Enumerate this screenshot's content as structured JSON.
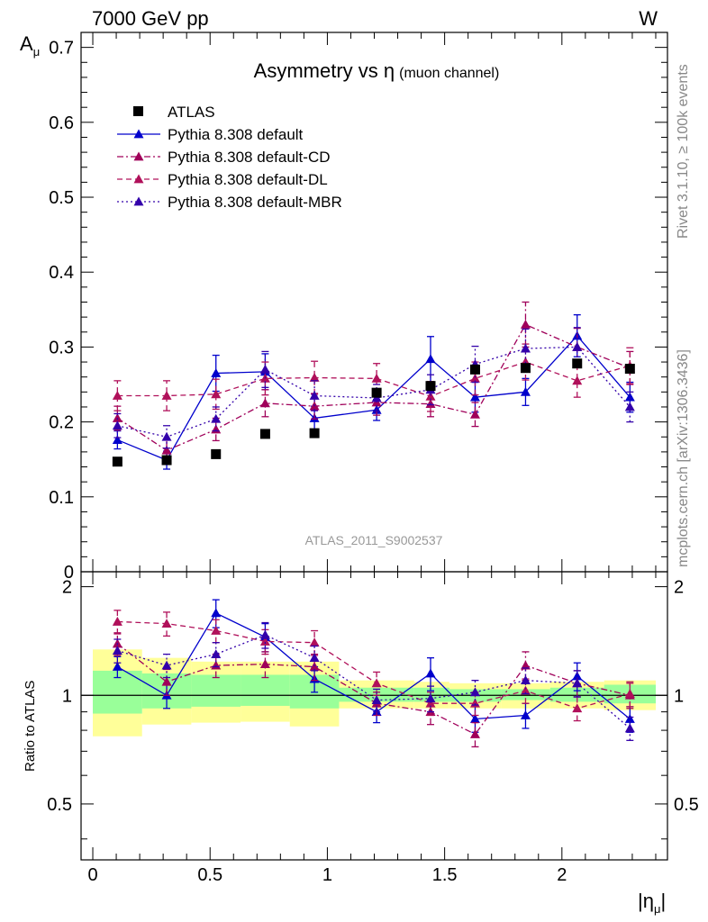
{
  "header": {
    "left": "7000 GeV pp",
    "right": "W"
  },
  "side": {
    "rivet": "Rivet 3.1.10, ≥ 100k events",
    "mcplots": "mcplots.cern.ch [arXiv:1306.3436]"
  },
  "colors": {
    "atlas": "#000000",
    "default": "#0000cc",
    "cd": "#a0005a",
    "dl": "#b0105a",
    "mbr": "#3300aa",
    "band_green": "#99ff99",
    "band_yellow": "#ffff99"
  },
  "chart_data": {
    "type": "scatter",
    "title": "Asymmetry vs η",
    "title_sub": "(muon channel)",
    "watermark": "ATLAS_2011_S9002537",
    "xlabel": "|η",
    "xlabel_sub": "μ",
    "ylabel": "A",
    "ylabel_sub": "μ",
    "ratio_ylabel": "Ratio to ATLAS",
    "xlim": [
      -0.05,
      2.45
    ],
    "ylim": [
      0,
      0.72
    ],
    "ratio_ylim": [
      0.35,
      2.2
    ],
    "x_ticks": [
      "0",
      "0.5",
      "1",
      "1.5",
      "2"
    ],
    "y_ticks": [
      "0",
      "0.1",
      "0.2",
      "0.3",
      "0.4",
      "0.5",
      "0.6",
      "0.7"
    ],
    "ratio_y_ticks": [
      "0.5",
      "1",
      "2"
    ],
    "x": [
      0.105,
      0.315,
      0.525,
      0.735,
      0.945,
      1.21,
      1.44,
      1.63,
      1.845,
      2.065,
      2.29
    ],
    "bin_edges": [
      0,
      0.21,
      0.42,
      0.63,
      0.84,
      1.05,
      1.37,
      1.52,
      1.74,
      1.95,
      2.18,
      2.4
    ],
    "legend": [
      "ATLAS",
      "Pythia 8.308 default",
      "Pythia 8.308 default-CD",
      "Pythia 8.308 default-DL",
      "Pythia 8.308 default-MBR"
    ],
    "data": {
      "name": "ATLAS",
      "values": [
        0.147,
        0.149,
        0.157,
        0.184,
        0.185,
        0.239,
        0.248,
        0.27,
        0.272,
        0.278,
        0.271
      ]
    },
    "ratio_bands": {
      "green": [
        [
          0.89,
          1.17
        ],
        [
          0.92,
          1.15
        ],
        [
          0.93,
          1.14
        ],
        [
          0.935,
          1.14
        ],
        [
          0.92,
          1.14
        ],
        [
          0.96,
          1.05
        ],
        [
          0.96,
          1.05
        ],
        [
          0.96,
          1.04
        ],
        [
          0.97,
          1.04
        ],
        [
          0.96,
          1.05
        ],
        [
          0.95,
          1.07
        ]
      ],
      "yellow": [
        [
          0.77,
          1.34
        ],
        [
          0.83,
          1.27
        ],
        [
          0.84,
          1.24
        ],
        [
          0.845,
          1.24
        ],
        [
          0.82,
          1.24
        ],
        [
          0.92,
          1.1
        ],
        [
          0.92,
          1.09
        ],
        [
          0.92,
          1.08
        ],
        [
          0.92,
          1.08
        ],
        [
          0.92,
          1.09
        ],
        [
          0.91,
          1.1
        ]
      ]
    },
    "series": [
      {
        "name": "Pythia 8.308 default",
        "values": [
          0.176,
          0.149,
          0.265,
          0.267,
          0.205,
          0.216,
          0.284,
          0.233,
          0.24,
          0.315,
          0.233
        ],
        "errors": [
          0.012,
          0.012,
          0.024,
          0.024,
          0.016,
          0.014,
          0.03,
          0.02,
          0.018,
          0.028,
          0.02
        ],
        "ratio": [
          1.2,
          1.0,
          1.69,
          1.45,
          1.11,
          0.9,
          1.15,
          0.86,
          0.88,
          1.13,
          0.86
        ],
        "ratio_err": [
          0.08,
          0.08,
          0.15,
          0.13,
          0.09,
          0.06,
          0.12,
          0.07,
          0.07,
          0.1,
          0.07
        ],
        "line": "solid",
        "color": "#0000cc"
      },
      {
        "name": "Pythia 8.308 default-CD",
        "values": [
          0.205,
          0.162,
          0.19,
          0.225,
          0.221,
          0.226,
          0.224,
          0.21,
          0.33,
          0.3,
          0.272
        ],
        "errors": [
          0.016,
          0.014,
          0.015,
          0.018,
          0.017,
          0.017,
          0.017,
          0.016,
          0.03,
          0.025,
          0.022
        ],
        "ratio": [
          1.39,
          1.09,
          1.21,
          1.22,
          1.2,
          0.95,
          0.9,
          0.78,
          1.21,
          1.08,
          1.0
        ],
        "ratio_err": [
          0.1,
          0.09,
          0.09,
          0.1,
          0.1,
          0.07,
          0.07,
          0.06,
          0.11,
          0.09,
          0.08
        ],
        "line": "dashdot",
        "color": "#a0005a"
      },
      {
        "name": "Pythia 8.308 default-DL",
        "values": [
          0.235,
          0.235,
          0.237,
          0.258,
          0.259,
          0.258,
          0.234,
          0.258,
          0.28,
          0.255,
          0.275
        ],
        "errors": [
          0.02,
          0.02,
          0.02,
          0.022,
          0.022,
          0.02,
          0.02,
          0.022,
          0.024,
          0.022,
          0.024
        ],
        "ratio": [
          1.6,
          1.58,
          1.51,
          1.41,
          1.4,
          1.08,
          0.95,
          0.95,
          1.03,
          0.92,
          1.01
        ],
        "ratio_err": [
          0.12,
          0.12,
          0.11,
          0.11,
          0.11,
          0.08,
          0.07,
          0.07,
          0.08,
          0.07,
          0.08
        ],
        "line": "dashed",
        "color": "#b0105a"
      },
      {
        "name": "Pythia 8.308 default-MBR",
        "values": [
          0.195,
          0.18,
          0.204,
          0.27,
          0.235,
          0.232,
          0.243,
          0.277,
          0.298,
          0.3,
          0.22
        ],
        "errors": [
          0.016,
          0.015,
          0.016,
          0.024,
          0.02,
          0.018,
          0.02,
          0.024,
          0.026,
          0.026,
          0.02
        ],
        "ratio": [
          1.33,
          1.21,
          1.3,
          1.47,
          1.27,
          0.97,
          0.98,
          1.02,
          1.1,
          1.08,
          0.81
        ],
        "ratio_err": [
          0.1,
          0.09,
          0.1,
          0.12,
          0.1,
          0.07,
          0.08,
          0.08,
          0.09,
          0.09,
          0.06
        ],
        "line": "dotted",
        "color": "#3300aa"
      }
    ]
  }
}
